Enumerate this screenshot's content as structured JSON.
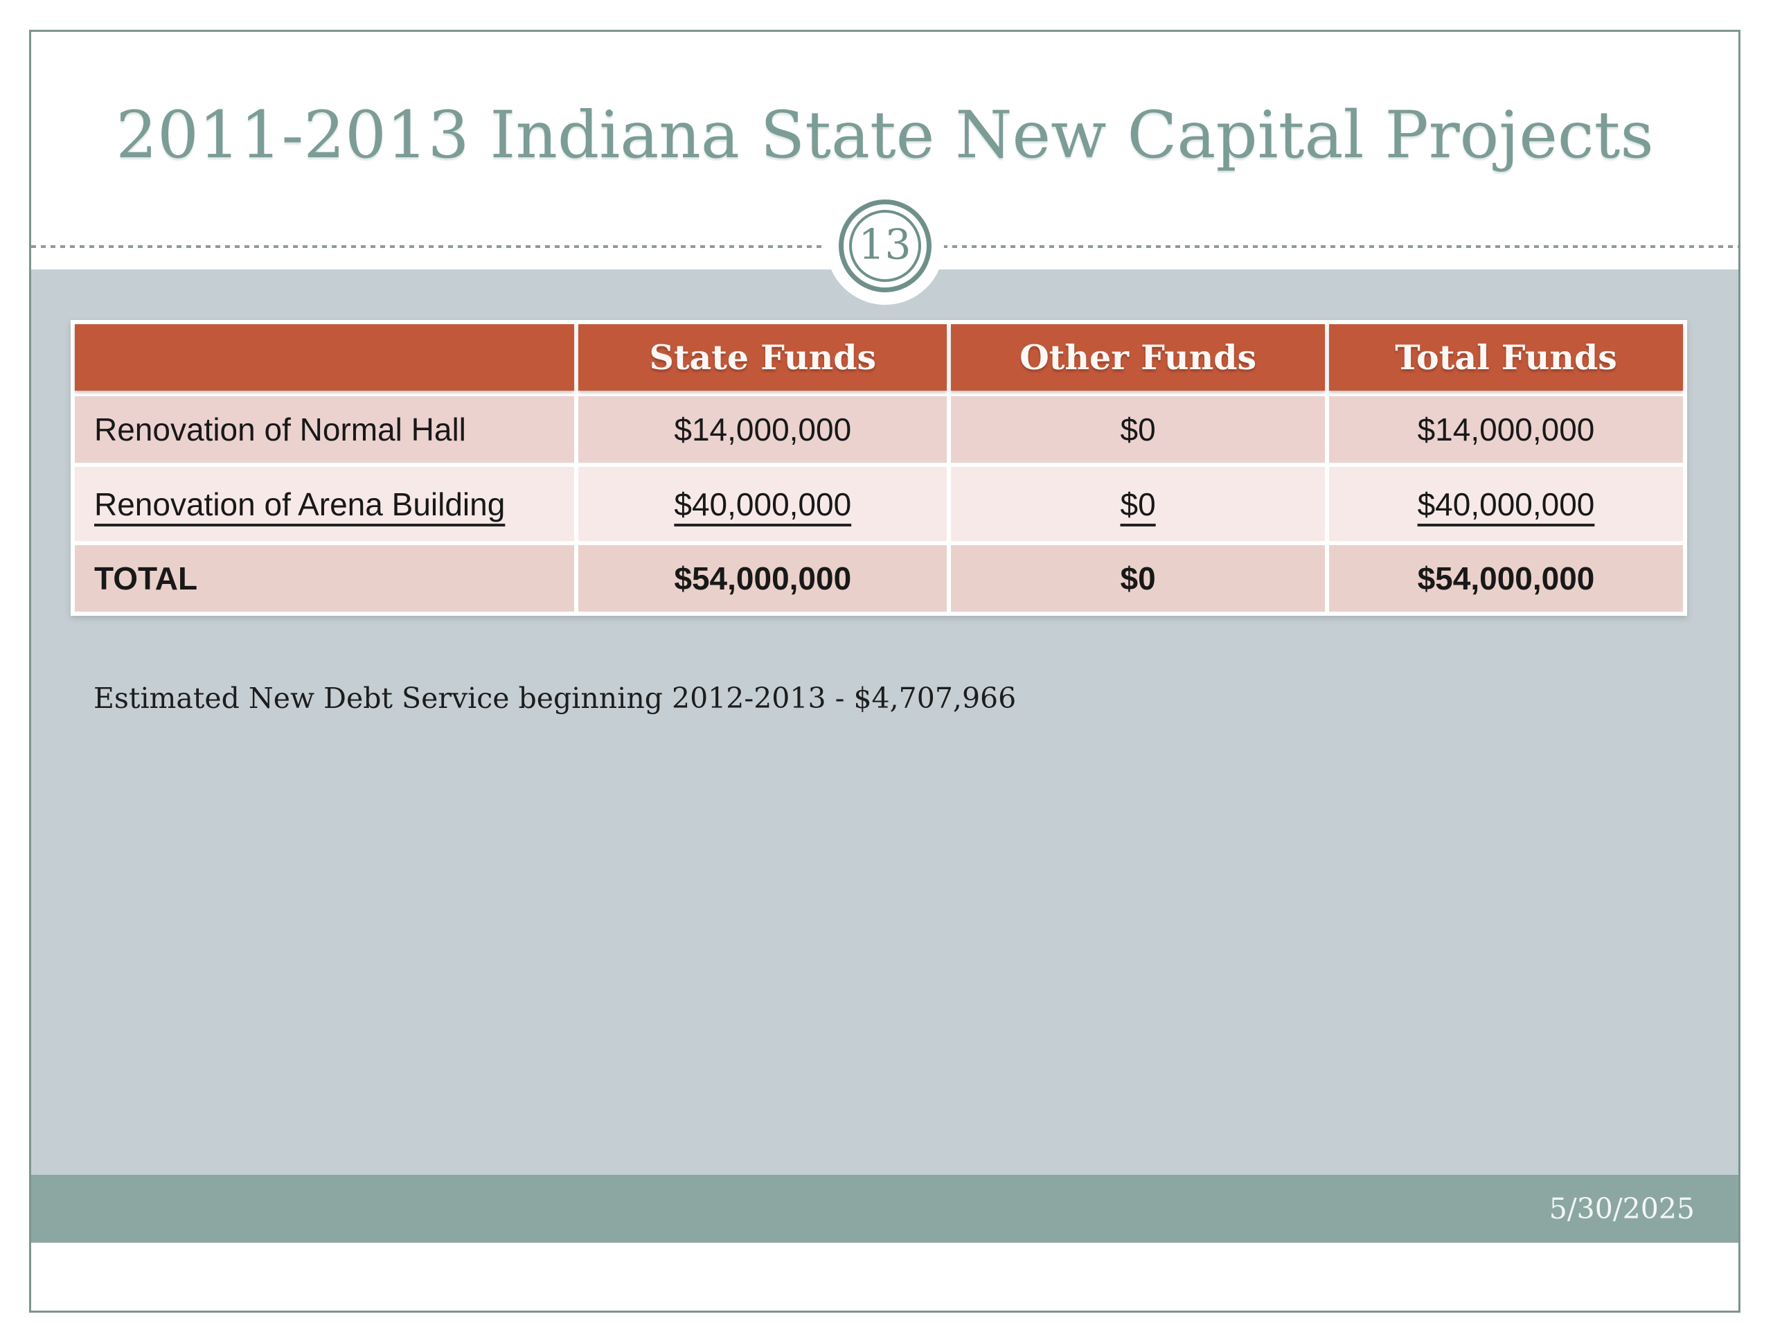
{
  "slide": {
    "title": "2011-2013 Indiana State New Capital Projects",
    "page_number": "13",
    "note": "Estimated New Debt Service beginning 2012-2013 - $4,707,966",
    "footer_date": "5/30/2025"
  },
  "table": {
    "columns": [
      "",
      "State Funds",
      "Other Funds",
      "Total Funds"
    ],
    "rows": [
      {
        "label": "Renovation of Normal Hall",
        "state": "$14,000,000",
        "other": "$0",
        "total": "$14,000,000"
      },
      {
        "label": "Renovation of Arena Building",
        "state": "$40,000,000",
        "other": "$0",
        "total": "$40,000,000"
      },
      {
        "label": "TOTAL",
        "state": "$54,000,000",
        "other": "$0",
        "total": "$54,000,000"
      }
    ]
  },
  "chart_data": {
    "type": "table",
    "title": "2011-2013 Indiana State New Capital Projects",
    "categories": [
      "Renovation of Normal Hall",
      "Renovation of Arena Building",
      "TOTAL"
    ],
    "series": [
      {
        "name": "State Funds",
        "values": [
          14000000,
          40000000,
          54000000
        ]
      },
      {
        "name": "Other Funds",
        "values": [
          0,
          0,
          0
        ]
      },
      {
        "name": "Total Funds",
        "values": [
          14000000,
          40000000,
          54000000
        ]
      }
    ]
  },
  "colors": {
    "accent-orange": "#C2583A",
    "header-text": "#FDF8F5",
    "row-pink-a": "#EBD2CF",
    "row-pink-b": "#F7E9E8",
    "row-pink-c": "#EAD0CB",
    "bg-gray": "#C5CFD3",
    "footer-teal": "#8CA7A1",
    "title-teal": "#7C9C96",
    "ring-teal": "#6F908A",
    "border-teal": "#7E948F",
    "dash-gray": "#8E9A9B",
    "text-dark": "#181818",
    "note-dark": "#1D1D1D"
  }
}
